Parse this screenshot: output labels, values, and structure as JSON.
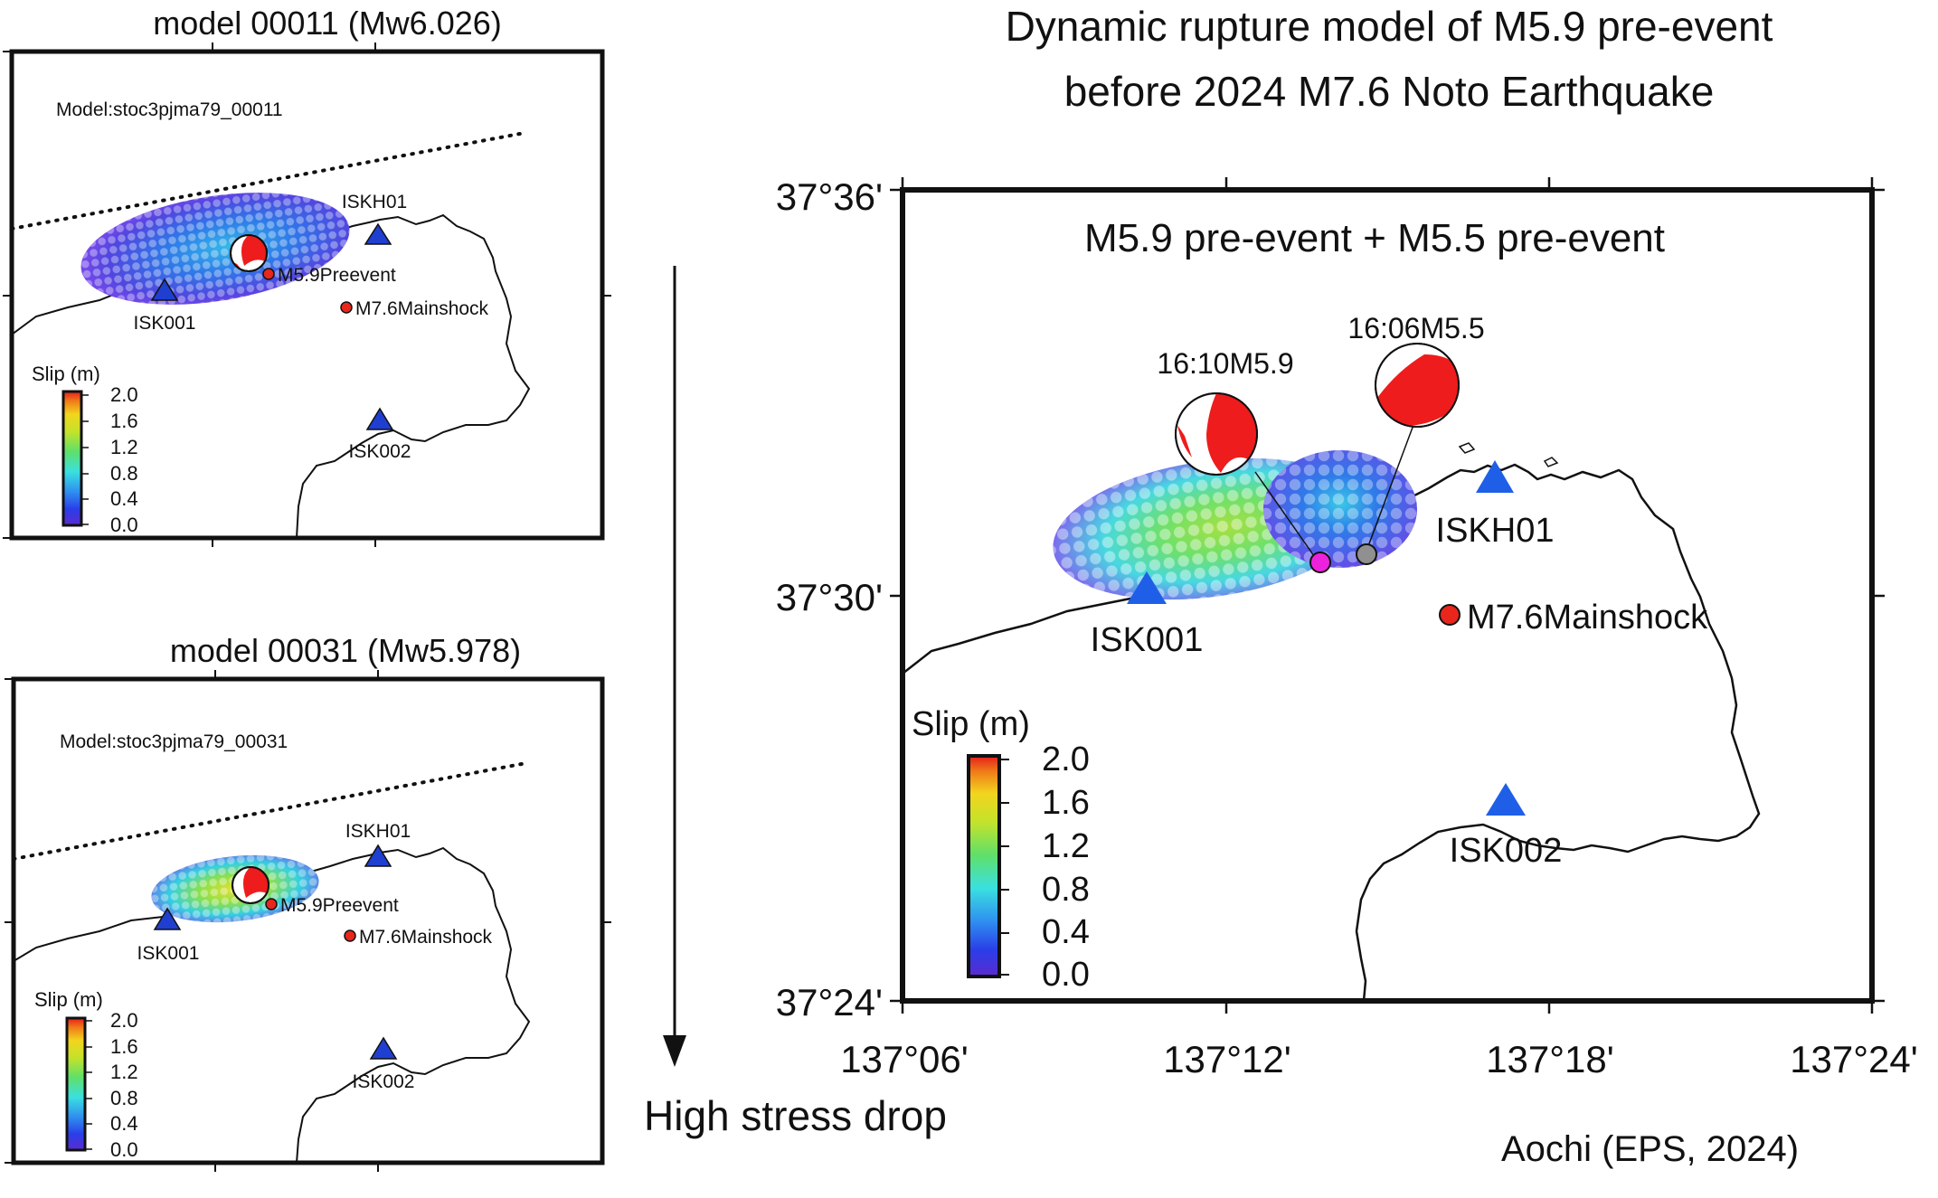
{
  "main_title_line1": "Dynamic rupture model of M5.9 pre-event",
  "main_title_line2": "before 2024 M7.6 Noto Earthquake",
  "panel_a": {
    "title": "model 00011 (Mw6.026)",
    "model_label": "Model:stoc3pjma79_00011",
    "station_north": "ISKH01",
    "station_west": "ISK001",
    "station_south": "ISK002",
    "preevent_label": "M5.9Preevent",
    "mainshock_label": "M7.6Mainshock",
    "colorbar_title": "Slip (m)",
    "colorbar_ticks": [
      "2.0",
      "1.6",
      "1.2",
      "0.8",
      "0.4",
      "0.0"
    ]
  },
  "panel_b": {
    "title": "model 00031 (Mw5.978)",
    "model_label": "Model:stoc3pjma79_00031",
    "station_north": "ISKH01",
    "station_west": "ISK001",
    "station_south": "ISK002",
    "preevent_label": "M5.9Preevent",
    "mainshock_label": "M7.6Mainshock",
    "colorbar_title": "Slip (m)",
    "colorbar_ticks": [
      "2.0",
      "1.6",
      "1.2",
      "0.8",
      "0.4",
      "0.0"
    ]
  },
  "arrow_label": "High stress drop",
  "main_panel": {
    "subtitle": "M5.9 pre-event + M5.5 pre-event",
    "lat_labels": [
      "37°36'",
      "37°30'",
      "37°24'"
    ],
    "lon_labels": [
      "137°06'",
      "137°12'",
      "137°18'",
      "137°24'"
    ],
    "event1_label": "16:10M5.9",
    "event2_label": "16:06M5.5",
    "station_north": "ISKH01",
    "station_west": "ISK001",
    "station_south": "ISK002",
    "mainshock_label": "M7.6Mainshock",
    "colorbar_title": "Slip (m)",
    "colorbar_ticks": [
      "2.0",
      "1.6",
      "1.2",
      "0.8",
      "0.4",
      "0.0"
    ]
  },
  "credit": "Aochi (EPS, 2024)",
  "colors": {
    "station": "#1f5fe8",
    "mainshock": "#e8261c",
    "beachball": "#ee1c1c",
    "epicenter_m59": "#ee22dd",
    "epicenter_m55": "#909090"
  }
}
